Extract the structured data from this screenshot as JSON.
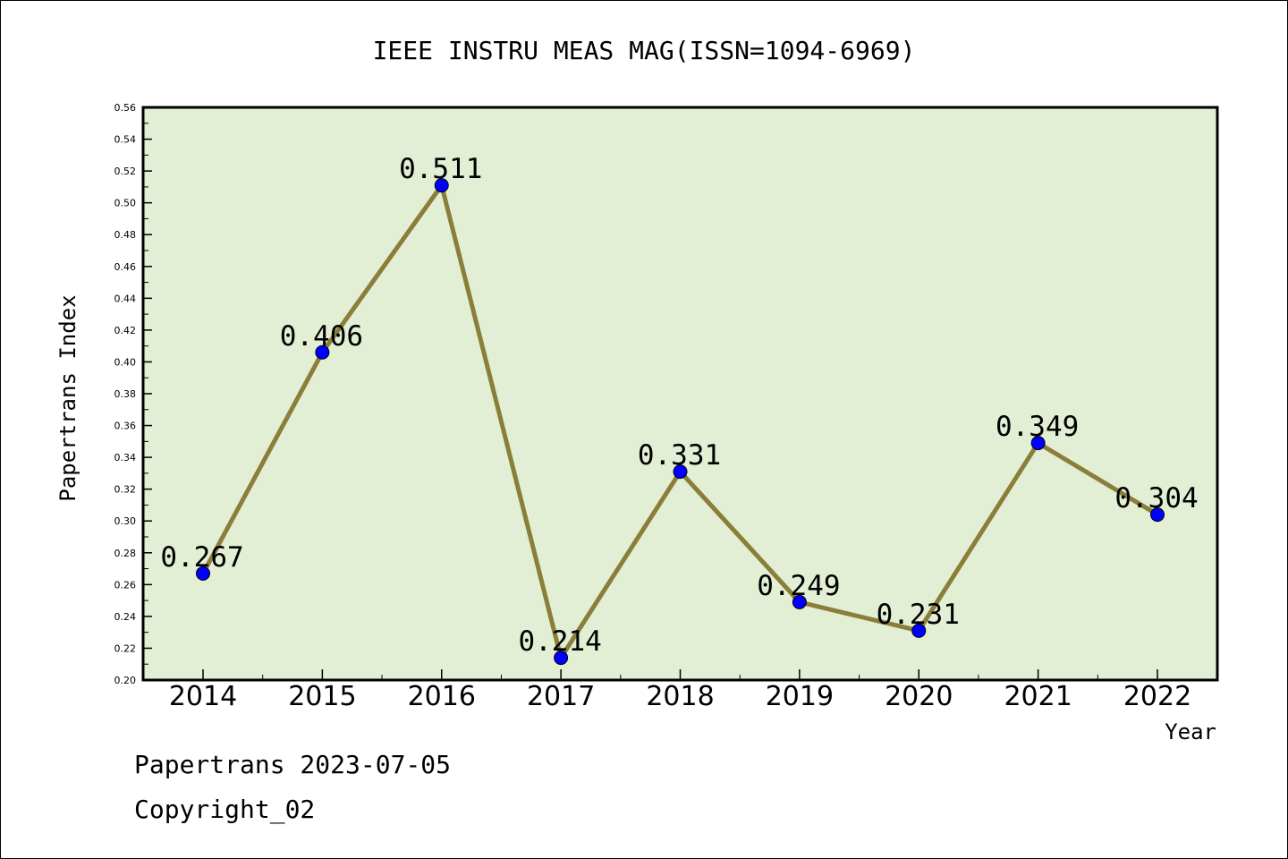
{
  "chart_data": {
    "type": "line",
    "title": "IEEE INSTRU MEAS MAG(ISSN=1094-6969)",
    "xlabel": "Year",
    "ylabel": "Papertrans Index",
    "categories": [
      "2014",
      "2015",
      "2016",
      "2017",
      "2018",
      "2019",
      "2020",
      "2021",
      "2022"
    ],
    "values": [
      0.267,
      0.406,
      0.511,
      0.214,
      0.331,
      0.249,
      0.231,
      0.349,
      0.304
    ],
    "data_labels": [
      "0.267",
      "0.406",
      "0.511",
      "0.214",
      "0.331",
      "0.249",
      "0.231",
      "0.349",
      "0.304"
    ],
    "ylim": [
      0.2,
      0.56
    ],
    "yticks": [
      "0.20",
      "0.22",
      "0.24",
      "0.26",
      "0.28",
      "0.30",
      "0.32",
      "0.34",
      "0.36",
      "0.38",
      "0.40",
      "0.42",
      "0.44",
      "0.46",
      "0.48",
      "0.50",
      "0.52",
      "0.54",
      "0.56"
    ],
    "grid": false,
    "colors": {
      "plot_background": "#e2efd4",
      "line": "#8b7d3a",
      "marker": "#0000ff"
    }
  },
  "footer": {
    "source": "Papertrans 2023-07-05",
    "copyright": "Copyright_02"
  }
}
